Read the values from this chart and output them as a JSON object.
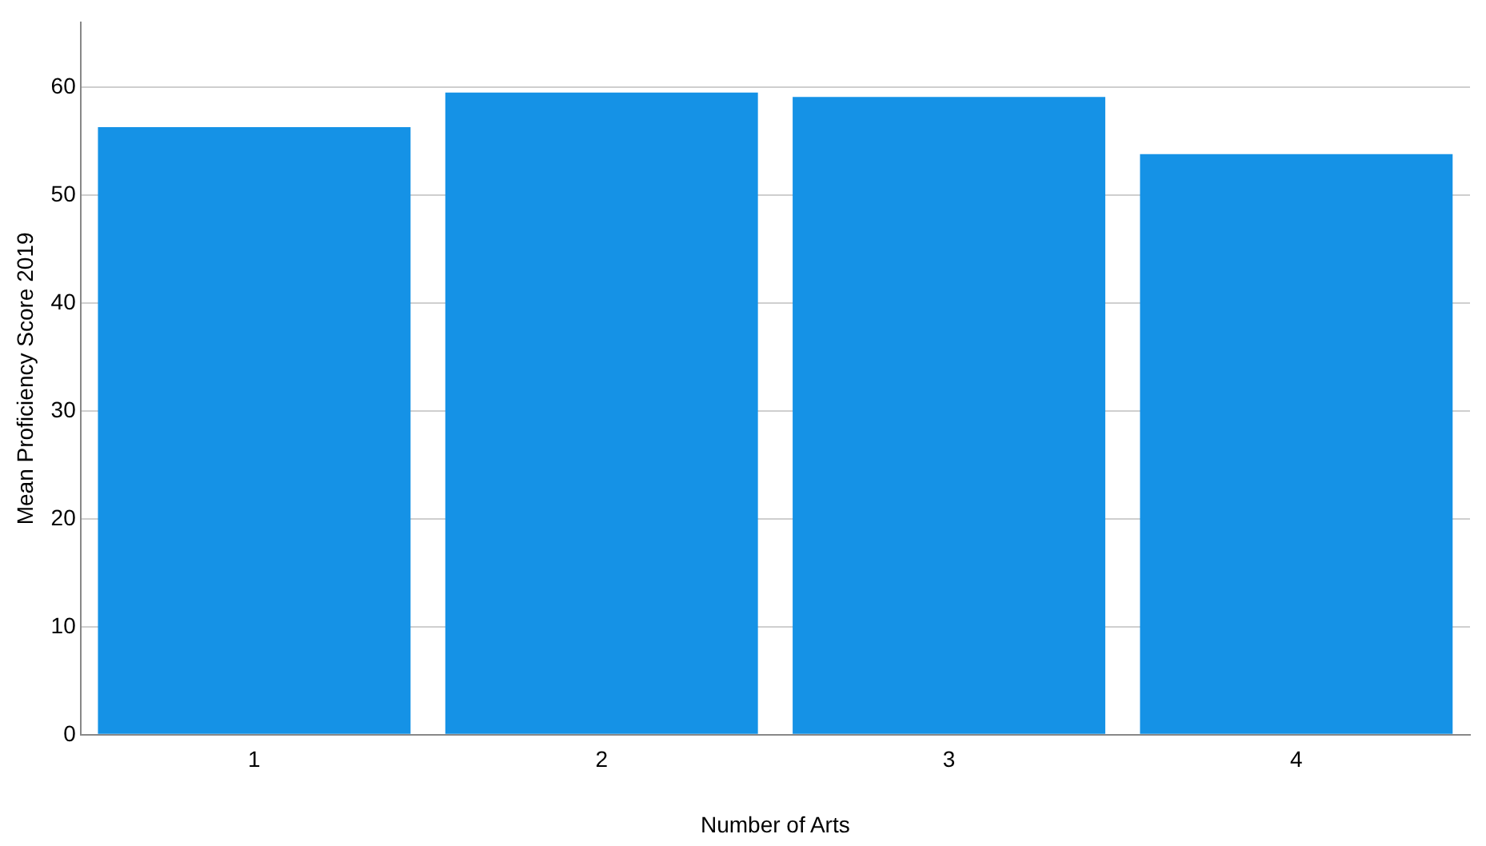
{
  "chart_data": {
    "type": "bar",
    "xlabel": "Number of Arts",
    "ylabel": "Mean Proficiency Score 2019",
    "categories": [
      "1",
      "2",
      "3",
      "4"
    ],
    "values": [
      56.3,
      59.5,
      59.1,
      53.8
    ],
    "color": "#1592e6",
    "ylim": [
      0,
      66
    ],
    "yticks": [
      0,
      10,
      20,
      30,
      40,
      50,
      60
    ],
    "grid": "y",
    "legend": false
  }
}
